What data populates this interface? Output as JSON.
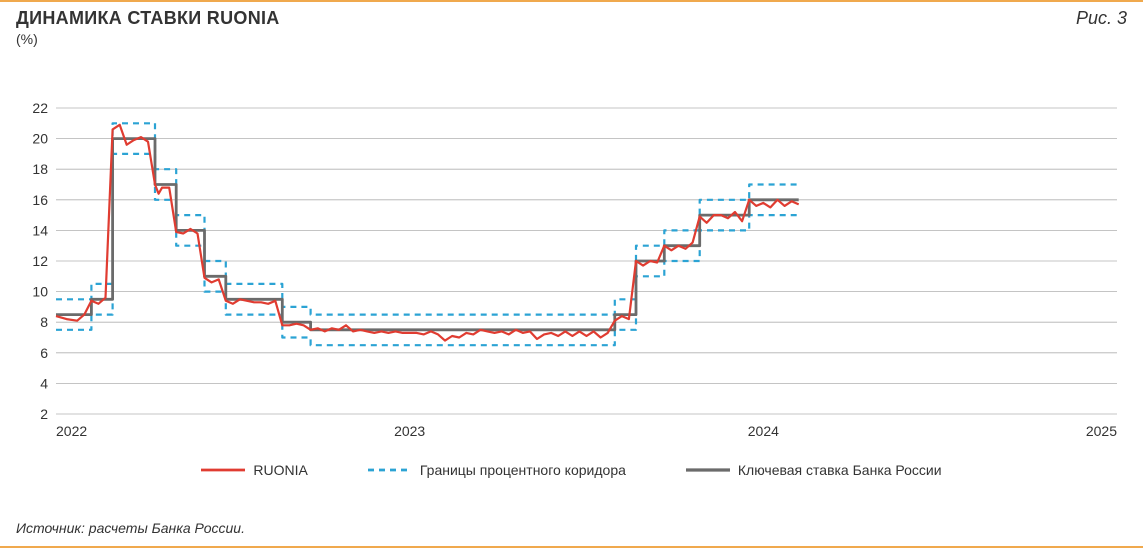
{
  "header": {
    "title": "ДИНАМИКА СТАВКИ RUONIA",
    "subtitle": "(%)",
    "figure_label": "Рис. 3"
  },
  "chart": {
    "type": "line",
    "background_color": "#ffffff",
    "accent_rule_color": "#f0a94d",
    "grid_color": "#b0b0b0",
    "axis_color": "#333333",
    "axis_fontsize": 14,
    "ylim": [
      2,
      22
    ],
    "ytick_step": 2,
    "xlim": [
      2022,
      2025
    ],
    "xticks": [
      2022,
      2023,
      2024,
      2025
    ],
    "series": {
      "ruonia": {
        "label": "RUONIA",
        "color": "#e03c31",
        "width": 2.2,
        "dash": "none",
        "data": [
          [
            2022.0,
            8.4
          ],
          [
            2022.03,
            8.2
          ],
          [
            2022.06,
            8.1
          ],
          [
            2022.08,
            8.5
          ],
          [
            2022.1,
            9.4
          ],
          [
            2022.12,
            9.2
          ],
          [
            2022.14,
            9.6
          ],
          [
            2022.16,
            20.6
          ],
          [
            2022.18,
            20.9
          ],
          [
            2022.2,
            19.6
          ],
          [
            2022.22,
            19.9
          ],
          [
            2022.24,
            20.1
          ],
          [
            2022.26,
            19.8
          ],
          [
            2022.28,
            17.0
          ],
          [
            2022.29,
            16.4
          ],
          [
            2022.3,
            16.8
          ],
          [
            2022.32,
            16.8
          ],
          [
            2022.34,
            13.9
          ],
          [
            2022.36,
            13.8
          ],
          [
            2022.38,
            14.1
          ],
          [
            2022.4,
            13.8
          ],
          [
            2022.42,
            10.9
          ],
          [
            2022.44,
            10.6
          ],
          [
            2022.46,
            10.8
          ],
          [
            2022.48,
            9.4
          ],
          [
            2022.5,
            9.2
          ],
          [
            2022.52,
            9.5
          ],
          [
            2022.54,
            9.4
          ],
          [
            2022.56,
            9.3
          ],
          [
            2022.58,
            9.3
          ],
          [
            2022.6,
            9.2
          ],
          [
            2022.62,
            9.4
          ],
          [
            2022.64,
            7.8
          ],
          [
            2022.66,
            7.8
          ],
          [
            2022.68,
            7.9
          ],
          [
            2022.7,
            7.8
          ],
          [
            2022.72,
            7.5
          ],
          [
            2022.74,
            7.6
          ],
          [
            2022.76,
            7.4
          ],
          [
            2022.78,
            7.6
          ],
          [
            2022.8,
            7.5
          ],
          [
            2022.82,
            7.8
          ],
          [
            2022.84,
            7.4
          ],
          [
            2022.86,
            7.5
          ],
          [
            2022.88,
            7.4
          ],
          [
            2022.9,
            7.3
          ],
          [
            2022.92,
            7.4
          ],
          [
            2022.94,
            7.3
          ],
          [
            2022.96,
            7.4
          ],
          [
            2022.98,
            7.3
          ],
          [
            2023.0,
            7.3
          ],
          [
            2023.02,
            7.3
          ],
          [
            2023.04,
            7.2
          ],
          [
            2023.06,
            7.4
          ],
          [
            2023.08,
            7.2
          ],
          [
            2023.1,
            6.8
          ],
          [
            2023.12,
            7.1
          ],
          [
            2023.14,
            7.0
          ],
          [
            2023.16,
            7.3
          ],
          [
            2023.18,
            7.2
          ],
          [
            2023.2,
            7.5
          ],
          [
            2023.22,
            7.4
          ],
          [
            2023.24,
            7.3
          ],
          [
            2023.26,
            7.4
          ],
          [
            2023.28,
            7.2
          ],
          [
            2023.3,
            7.5
          ],
          [
            2023.32,
            7.3
          ],
          [
            2023.34,
            7.4
          ],
          [
            2023.36,
            6.9
          ],
          [
            2023.38,
            7.2
          ],
          [
            2023.4,
            7.3
          ],
          [
            2023.42,
            7.1
          ],
          [
            2023.44,
            7.4
          ],
          [
            2023.46,
            7.1
          ],
          [
            2023.48,
            7.4
          ],
          [
            2023.5,
            7.1
          ],
          [
            2023.52,
            7.4
          ],
          [
            2023.54,
            7.0
          ],
          [
            2023.56,
            7.3
          ],
          [
            2023.58,
            8.1
          ],
          [
            2023.6,
            8.4
          ],
          [
            2023.62,
            8.2
          ],
          [
            2023.64,
            12.0
          ],
          [
            2023.66,
            11.7
          ],
          [
            2023.68,
            12.0
          ],
          [
            2023.7,
            11.9
          ],
          [
            2023.72,
            13.0
          ],
          [
            2023.74,
            12.7
          ],
          [
            2023.76,
            13.0
          ],
          [
            2023.78,
            12.8
          ],
          [
            2023.8,
            13.2
          ],
          [
            2023.82,
            14.9
          ],
          [
            2023.84,
            14.5
          ],
          [
            2023.86,
            15.0
          ],
          [
            2023.88,
            15.0
          ],
          [
            2023.9,
            14.8
          ],
          [
            2023.92,
            15.2
          ],
          [
            2023.94,
            14.6
          ],
          [
            2023.96,
            16.0
          ],
          [
            2023.98,
            15.6
          ],
          [
            2024.0,
            15.8
          ],
          [
            2024.02,
            15.5
          ],
          [
            2024.04,
            16.0
          ],
          [
            2024.06,
            15.6
          ],
          [
            2024.08,
            15.9
          ],
          [
            2024.1,
            15.7
          ]
        ]
      },
      "key_rate": {
        "label": "Ключевая ставка Банка России",
        "color": "#6b6b6b",
        "width": 2.8,
        "dash": "none",
        "data": [
          [
            2022.0,
            8.5
          ],
          [
            2022.1,
            8.5
          ],
          [
            2022.1,
            9.5
          ],
          [
            2022.16,
            9.5
          ],
          [
            2022.16,
            20.0
          ],
          [
            2022.28,
            20.0
          ],
          [
            2022.28,
            17.0
          ],
          [
            2022.34,
            17.0
          ],
          [
            2022.34,
            14.0
          ],
          [
            2022.42,
            14.0
          ],
          [
            2022.42,
            11.0
          ],
          [
            2022.48,
            11.0
          ],
          [
            2022.48,
            9.5
          ],
          [
            2022.64,
            9.5
          ],
          [
            2022.64,
            8.0
          ],
          [
            2022.72,
            8.0
          ],
          [
            2022.72,
            7.5
          ],
          [
            2023.58,
            7.5
          ],
          [
            2023.58,
            8.5
          ],
          [
            2023.64,
            8.5
          ],
          [
            2023.64,
            12.0
          ],
          [
            2023.72,
            12.0
          ],
          [
            2023.72,
            13.0
          ],
          [
            2023.82,
            13.0
          ],
          [
            2023.82,
            15.0
          ],
          [
            2023.96,
            15.0
          ],
          [
            2023.96,
            16.0
          ],
          [
            2024.1,
            16.0
          ]
        ]
      },
      "corridor_upper": {
        "label": "Границы процентного коридора",
        "color": "#2ba3d4",
        "width": 2.2,
        "dash": "6,5",
        "data": [
          [
            2022.0,
            9.5
          ],
          [
            2022.1,
            9.5
          ],
          [
            2022.1,
            10.5
          ],
          [
            2022.16,
            10.5
          ],
          [
            2022.16,
            21.0
          ],
          [
            2022.28,
            21.0
          ],
          [
            2022.28,
            18.0
          ],
          [
            2022.34,
            18.0
          ],
          [
            2022.34,
            15.0
          ],
          [
            2022.42,
            15.0
          ],
          [
            2022.42,
            12.0
          ],
          [
            2022.48,
            12.0
          ],
          [
            2022.48,
            10.5
          ],
          [
            2022.64,
            10.5
          ],
          [
            2022.64,
            9.0
          ],
          [
            2022.72,
            9.0
          ],
          [
            2022.72,
            8.5
          ],
          [
            2023.58,
            8.5
          ],
          [
            2023.58,
            9.5
          ],
          [
            2023.64,
            9.5
          ],
          [
            2023.64,
            13.0
          ],
          [
            2023.72,
            13.0
          ],
          [
            2023.72,
            14.0
          ],
          [
            2023.82,
            14.0
          ],
          [
            2023.82,
            16.0
          ],
          [
            2023.96,
            16.0
          ],
          [
            2023.96,
            17.0
          ],
          [
            2024.1,
            17.0
          ]
        ]
      },
      "corridor_lower": {
        "label_hidden": true,
        "color": "#2ba3d4",
        "width": 2.2,
        "dash": "6,5",
        "data": [
          [
            2022.0,
            7.5
          ],
          [
            2022.1,
            7.5
          ],
          [
            2022.1,
            8.5
          ],
          [
            2022.16,
            8.5
          ],
          [
            2022.16,
            19.0
          ],
          [
            2022.28,
            19.0
          ],
          [
            2022.28,
            16.0
          ],
          [
            2022.34,
            16.0
          ],
          [
            2022.34,
            13.0
          ],
          [
            2022.42,
            13.0
          ],
          [
            2022.42,
            10.0
          ],
          [
            2022.48,
            10.0
          ],
          [
            2022.48,
            8.5
          ],
          [
            2022.64,
            8.5
          ],
          [
            2022.64,
            7.0
          ],
          [
            2022.72,
            7.0
          ],
          [
            2022.72,
            6.5
          ],
          [
            2023.58,
            6.5
          ],
          [
            2023.58,
            7.5
          ],
          [
            2023.64,
            7.5
          ],
          [
            2023.64,
            11.0
          ],
          [
            2023.72,
            11.0
          ],
          [
            2023.72,
            12.0
          ],
          [
            2023.82,
            12.0
          ],
          [
            2023.82,
            14.0
          ],
          [
            2023.96,
            14.0
          ],
          [
            2023.96,
            15.0
          ],
          [
            2024.1,
            15.0
          ]
        ]
      }
    },
    "legend_order": [
      "ruonia",
      "corridor_upper",
      "key_rate"
    ]
  },
  "source": "Источник: расчеты Банка России."
}
